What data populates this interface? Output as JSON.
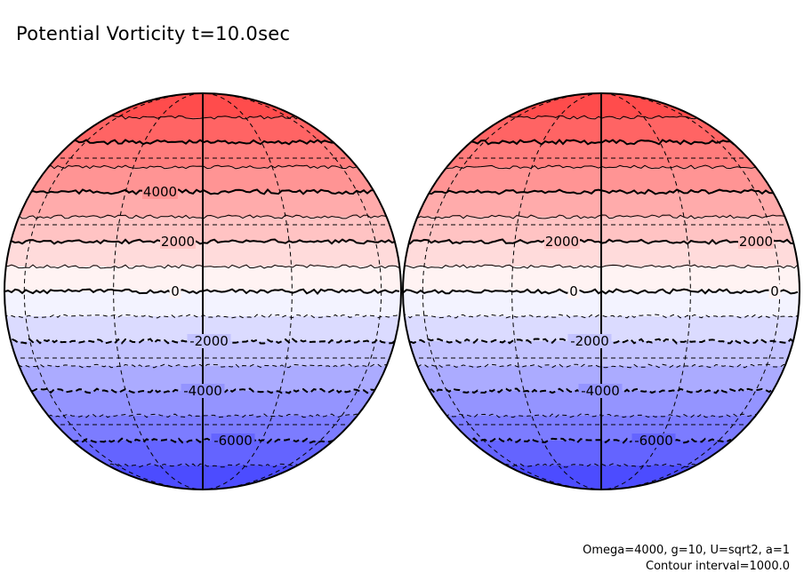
{
  "chart_data": {
    "type": "heatmap",
    "title": "Potential Vorticity t=10.0sec",
    "projection": "orthographic",
    "annotations": [
      "Omega=4000, g=10, U=sqrt2, a=1",
      "Contour interval=1000.0"
    ],
    "contour_interval": 1000.0,
    "levels": [
      7000,
      6000,
      5000,
      4000,
      3000,
      2000,
      1000,
      0,
      -1000,
      -2000,
      -3000,
      -4000,
      -5000,
      -6000,
      -7000
    ],
    "level_range": [
      -8000,
      8000
    ],
    "colormap": {
      "max": "#ff4040",
      "mid": "#ffffff",
      "min": "#4040ff"
    },
    "globes": [
      {
        "name": "left",
        "labels": [
          {
            "value": 4000,
            "text": "4000"
          },
          {
            "value": 2000,
            "text": "2000"
          },
          {
            "value": 0,
            "text": "0"
          },
          {
            "value": -2000,
            "text": "-2000"
          },
          {
            "value": -4000,
            "text": "-4000"
          },
          {
            "value": -6000,
            "text": "-6000"
          }
        ]
      },
      {
        "name": "right",
        "labels": [
          {
            "value": 2000,
            "text": "2000"
          },
          {
            "value": 2000,
            "text": "2000"
          },
          {
            "value": 0,
            "text": "0"
          },
          {
            "value": 0,
            "text": "0"
          },
          {
            "value": -2000,
            "text": "-2000"
          },
          {
            "value": -4000,
            "text": "-4000"
          },
          {
            "value": -6000,
            "text": "-6000"
          }
        ]
      }
    ]
  }
}
